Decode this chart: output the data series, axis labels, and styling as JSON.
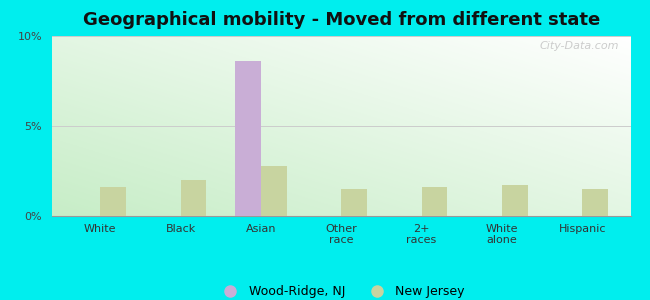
{
  "title": "Geographical mobility - Moved from different state",
  "categories": [
    "White",
    "Black",
    "Asian",
    "Other\nrace",
    "2+\nraces",
    "White\nalone",
    "Hispanic"
  ],
  "wood_ridge_values": [
    0,
    0,
    8.6,
    0,
    0,
    0,
    0
  ],
  "nj_values": [
    1.6,
    2.0,
    2.8,
    1.5,
    1.6,
    1.7,
    1.5
  ],
  "wood_ridge_color": "#c9aed6",
  "nj_color": "#c8d4a0",
  "outer_bg": "#00eeee",
  "ylim": [
    0,
    10
  ],
  "yticks": [
    0,
    5,
    10
  ],
  "ytick_labels": [
    "0%",
    "5%",
    "10%"
  ],
  "bar_width": 0.32,
  "legend_wood_ridge": "Wood-Ridge, NJ",
  "legend_nj": "New Jersey",
  "title_fontsize": 13,
  "watermark": "City-Data.com"
}
